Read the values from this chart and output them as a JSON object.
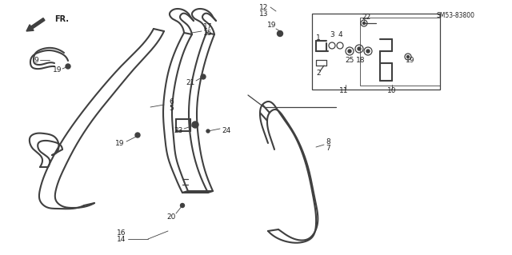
{
  "bg_color": "#ffffff",
  "line_color": "#404040",
  "text_color": "#202020",
  "diagram_id": "SM53-83800",
  "fig_width": 6.4,
  "fig_height": 3.19,
  "dpi": 100
}
